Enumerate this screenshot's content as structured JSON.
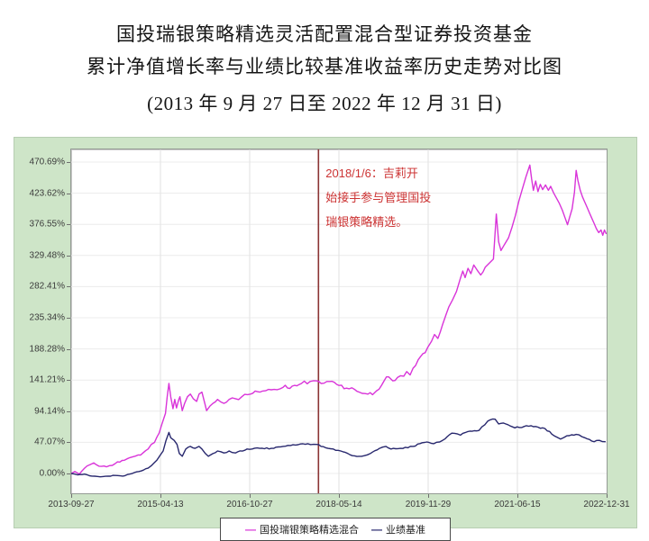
{
  "title": {
    "line1": "国投瑞银策略精选灵活配置混合型证券投资基金",
    "line2": "累计净值增长率与业绩比较基准收益率历史走势对比图",
    "line3": "(2013 年 9 月 27 日至 2022 年 12 月 31 日)"
  },
  "annotation": {
    "line1": "2018/1/6：吉莉开",
    "line2": "始接手参与管理国投",
    "line3": "瑞银策略精选。",
    "full_text": "2018/1/6：吉莉开始接手参与管理国投瑞银策略精选。"
  },
  "legend": {
    "items": [
      {
        "label": "国投瑞银策略精选混合",
        "color": "#d934d9"
      },
      {
        "label": "业绩基准",
        "color": "#28286e"
      }
    ]
  },
  "colors": {
    "panel_bg": "#cee5c8",
    "fund_line": "#d934d9",
    "benchmark_line": "#28286e",
    "event_line": "#8b3434",
    "annotation_text": "#cc3333",
    "grid_vertical": "#e2e2e2",
    "grid_horizontal": "#ececec",
    "axis_text": "#3a3a3a"
  },
  "chart_data": {
    "type": "line",
    "title": "累计净值增长率与业绩比较基准收益率历史走势对比图",
    "x_axis": {
      "tick_labels": [
        "2013-09-27",
        "2015-04-13",
        "2016-10-27",
        "2018-05-14",
        "2019-11-29",
        "2021-06-15",
        "2022-12-31"
      ],
      "range_years": [
        2013.74,
        2022.997
      ],
      "grid": true
    },
    "y_axis": {
      "tick_labels": [
        "470.69%",
        "423.62%",
        "376.55%",
        "329.48%",
        "282.41%",
        "235.34%",
        "188.28%",
        "141.21%",
        "94.14%",
        "47.07%",
        "0.00%"
      ],
      "range": [
        0,
        470.69
      ],
      "unit": "%",
      "grid": true
    },
    "event_line": {
      "year": 2018.014,
      "date": "2018/1/6",
      "label": "2018/1/6：吉莉开始接手参与管理国投瑞银策略精选。"
    },
    "legend_position": "bottom-center",
    "series": [
      {
        "name": "国投瑞银策略精选混合",
        "color": "#d934d9",
        "points": [
          [
            2013.74,
            0
          ],
          [
            2013.8,
            3
          ],
          [
            2013.88,
            -1
          ],
          [
            2013.97,
            8
          ],
          [
            2014.06,
            13
          ],
          [
            2014.13,
            16
          ],
          [
            2014.22,
            11
          ],
          [
            2014.35,
            10
          ],
          [
            2014.5,
            15
          ],
          [
            2014.66,
            20
          ],
          [
            2014.8,
            25
          ],
          [
            2014.9,
            28
          ],
          [
            2014.98,
            31
          ],
          [
            2015.07,
            37
          ],
          [
            2015.18,
            47
          ],
          [
            2015.26,
            61
          ],
          [
            2015.31,
            75
          ],
          [
            2015.37,
            91
          ],
          [
            2015.4,
            116
          ],
          [
            2015.43,
            136
          ],
          [
            2015.46,
            116
          ],
          [
            2015.5,
            98
          ],
          [
            2015.53,
            112
          ],
          [
            2015.56,
            99
          ],
          [
            2015.6,
            112
          ],
          [
            2015.62,
            116
          ],
          [
            2015.66,
            95
          ],
          [
            2015.7,
            106
          ],
          [
            2015.75,
            116
          ],
          [
            2015.8,
            120
          ],
          [
            2015.85,
            113
          ],
          [
            2015.91,
            109
          ],
          [
            2015.95,
            120
          ],
          [
            2016.0,
            123
          ],
          [
            2016.05,
            106
          ],
          [
            2016.08,
            95
          ],
          [
            2016.14,
            102
          ],
          [
            2016.19,
            106
          ],
          [
            2016.27,
            112
          ],
          [
            2016.38,
            106
          ],
          [
            2016.47,
            112
          ],
          [
            2016.58,
            113
          ],
          [
            2016.69,
            116
          ],
          [
            2016.84,
            120
          ],
          [
            2017.0,
            123
          ],
          [
            2017.1,
            125
          ],
          [
            2017.25,
            127
          ],
          [
            2017.4,
            130
          ],
          [
            2017.56,
            132
          ],
          [
            2017.72,
            136
          ],
          [
            2017.87,
            139
          ],
          [
            2017.98,
            140
          ],
          [
            2018.06,
            136
          ],
          [
            2018.21,
            139
          ],
          [
            2018.37,
            133
          ],
          [
            2018.5,
            129
          ],
          [
            2018.64,
            127
          ],
          [
            2018.72,
            123
          ],
          [
            2018.87,
            120
          ],
          [
            2018.95,
            119
          ],
          [
            2019.02,
            125
          ],
          [
            2019.15,
            140
          ],
          [
            2019.23,
            146
          ],
          [
            2019.3,
            140
          ],
          [
            2019.38,
            145
          ],
          [
            2019.49,
            147
          ],
          [
            2019.54,
            154
          ],
          [
            2019.6,
            149
          ],
          [
            2019.65,
            159
          ],
          [
            2019.74,
            172
          ],
          [
            2019.82,
            181
          ],
          [
            2019.9,
            190
          ],
          [
            2019.97,
            200
          ],
          [
            2020.02,
            210
          ],
          [
            2020.08,
            204
          ],
          [
            2020.16,
            225
          ],
          [
            2020.22,
            240
          ],
          [
            2020.27,
            252
          ],
          [
            2020.33,
            262
          ],
          [
            2020.4,
            275
          ],
          [
            2020.47,
            295
          ],
          [
            2020.51,
            306
          ],
          [
            2020.55,
            296
          ],
          [
            2020.6,
            310
          ],
          [
            2020.65,
            302
          ],
          [
            2020.7,
            315
          ],
          [
            2020.76,
            307
          ],
          [
            2020.82,
            300
          ],
          [
            2020.9,
            312
          ],
          [
            2020.97,
            318
          ],
          [
            2021.04,
            324
          ],
          [
            2021.09,
            392
          ],
          [
            2021.13,
            350
          ],
          [
            2021.17,
            337
          ],
          [
            2021.23,
            346
          ],
          [
            2021.3,
            356
          ],
          [
            2021.36,
            372
          ],
          [
            2021.42,
            390
          ],
          [
            2021.48,
            412
          ],
          [
            2021.54,
            430
          ],
          [
            2021.6,
            448
          ],
          [
            2021.67,
            466
          ],
          [
            2021.7,
            445
          ],
          [
            2021.73,
            428
          ],
          [
            2021.77,
            442
          ],
          [
            2021.81,
            426
          ],
          [
            2021.85,
            437
          ],
          [
            2021.89,
            429
          ],
          [
            2021.94,
            436
          ],
          [
            2021.99,
            428
          ],
          [
            2022.03,
            434
          ],
          [
            2022.08,
            424
          ],
          [
            2022.13,
            416
          ],
          [
            2022.18,
            408
          ],
          [
            2022.23,
            398
          ],
          [
            2022.28,
            386
          ],
          [
            2022.32,
            376
          ],
          [
            2022.36,
            388
          ],
          [
            2022.4,
            400
          ],
          [
            2022.44,
            425
          ],
          [
            2022.47,
            458
          ],
          [
            2022.5,
            443
          ],
          [
            2022.54,
            428
          ],
          [
            2022.58,
            418
          ],
          [
            2022.62,
            410
          ],
          [
            2022.66,
            402
          ],
          [
            2022.7,
            394
          ],
          [
            2022.74,
            386
          ],
          [
            2022.78,
            378
          ],
          [
            2022.82,
            370
          ],
          [
            2022.86,
            364
          ],
          [
            2022.9,
            368
          ],
          [
            2022.93,
            360
          ],
          [
            2022.96,
            368
          ],
          [
            2022.99,
            362
          ]
        ]
      },
      {
        "name": "业绩基准",
        "color": "#28286e",
        "points": [
          [
            2013.74,
            0
          ],
          [
            2013.85,
            -2
          ],
          [
            2013.97,
            -1
          ],
          [
            2014.1,
            -4
          ],
          [
            2014.24,
            -5
          ],
          [
            2014.38,
            -4
          ],
          [
            2014.5,
            -3
          ],
          [
            2014.63,
            -4
          ],
          [
            2014.75,
            -1
          ],
          [
            2014.91,
            3
          ],
          [
            2015.07,
            8
          ],
          [
            2015.22,
            20
          ],
          [
            2015.33,
            34
          ],
          [
            2015.38,
            50
          ],
          [
            2015.43,
            62
          ],
          [
            2015.46,
            54
          ],
          [
            2015.52,
            50
          ],
          [
            2015.57,
            44
          ],
          [
            2015.61,
            30
          ],
          [
            2015.66,
            26
          ],
          [
            2015.72,
            37
          ],
          [
            2015.8,
            41
          ],
          [
            2015.88,
            38
          ],
          [
            2015.95,
            41
          ],
          [
            2016.0,
            37
          ],
          [
            2016.06,
            30
          ],
          [
            2016.11,
            26
          ],
          [
            2016.19,
            30
          ],
          [
            2016.27,
            34
          ],
          [
            2016.38,
            31
          ],
          [
            2016.47,
            34
          ],
          [
            2016.58,
            31
          ],
          [
            2016.78,
            37
          ],
          [
            2017.0,
            38
          ],
          [
            2017.2,
            38
          ],
          [
            2017.4,
            41
          ],
          [
            2017.62,
            43
          ],
          [
            2017.83,
            45
          ],
          [
            2017.98,
            44
          ],
          [
            2018.18,
            38
          ],
          [
            2018.4,
            34
          ],
          [
            2018.6,
            27
          ],
          [
            2018.76,
            26
          ],
          [
            2018.91,
            30
          ],
          [
            2019.07,
            38
          ],
          [
            2019.18,
            41
          ],
          [
            2019.27,
            37
          ],
          [
            2019.43,
            38
          ],
          [
            2019.65,
            41
          ],
          [
            2019.85,
            47
          ],
          [
            2020.01,
            45
          ],
          [
            2020.16,
            50
          ],
          [
            2020.32,
            61
          ],
          [
            2020.47,
            58
          ],
          [
            2020.63,
            64
          ],
          [
            2020.79,
            65
          ],
          [
            2020.94,
            79
          ],
          [
            2021.07,
            82
          ],
          [
            2021.13,
            75
          ],
          [
            2021.25,
            75
          ],
          [
            2021.41,
            69
          ],
          [
            2021.57,
            71
          ],
          [
            2021.77,
            71
          ],
          [
            2021.93,
            68
          ],
          [
            2022.09,
            57
          ],
          [
            2022.2,
            52
          ],
          [
            2022.31,
            57
          ],
          [
            2022.47,
            59
          ],
          [
            2022.62,
            54
          ],
          [
            2022.78,
            48
          ],
          [
            2022.87,
            50
          ],
          [
            2022.98,
            48
          ]
        ]
      }
    ]
  }
}
